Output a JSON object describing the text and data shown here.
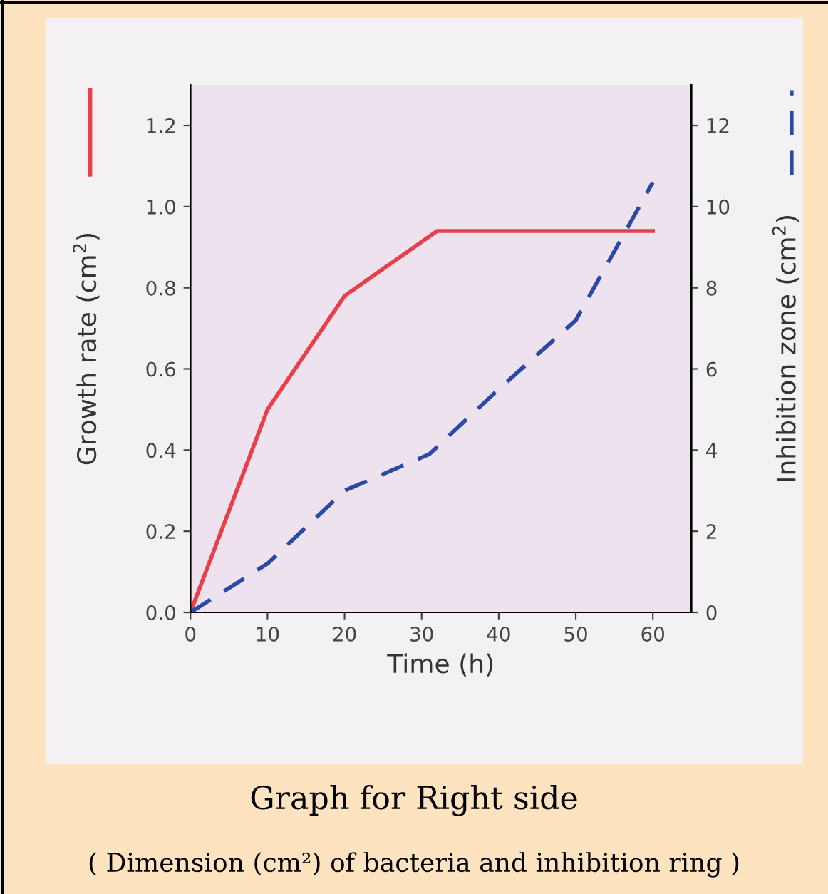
{
  "chart_data": {
    "type": "line",
    "title": "Graph for Right side",
    "subtitle": "( Dimension (cm²) of bacteria and inhibition ring )",
    "xlabel": "Time (h)",
    "ylabel": "Growth rate (cm$^{2}$)",
    "y2label": "Inhibition zone (cm$^{2}$)",
    "xlim": [
      0,
      65
    ],
    "xticks": [
      0,
      10,
      20,
      30,
      40,
      50,
      60
    ],
    "ylim": [
      0,
      1.3
    ],
    "yticks": [
      {
        "value": 0,
        "label": "0.0"
      },
      0.2,
      0.4,
      0.6,
      0.8,
      {
        "value": 1,
        "label": "1.0"
      },
      1.2
    ],
    "y2lim": [
      0,
      13
    ],
    "y2ticks": [
      0,
      2,
      4,
      6,
      8,
      10,
      12
    ],
    "grid": false,
    "legend": false,
    "series": [
      {
        "color": "#e8404a",
        "line_style": "solid",
        "x": [
          0,
          10,
          20,
          32,
          60
        ],
        "values": [
          0,
          0.5,
          0.78,
          0.94,
          0.94
        ]
      },
      {
        "color": "#2a4aa8",
        "line_style": "dashed",
        "axis": "y2",
        "x": [
          0,
          10,
          20,
          31,
          40,
          50,
          60
        ],
        "values": [
          0,
          1.2,
          3,
          3.9,
          5.5,
          7.2,
          10.6
        ]
      }
    ]
  }
}
